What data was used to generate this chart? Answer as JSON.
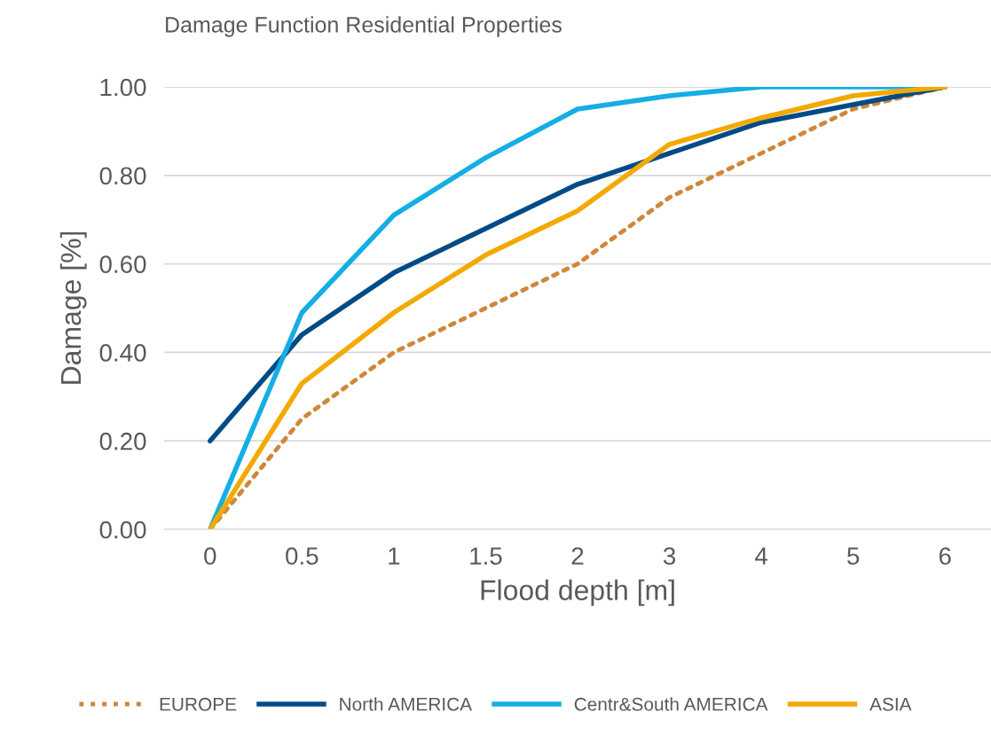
{
  "chart_data": {
    "type": "line",
    "title": "Damage Function Residential Properties",
    "xlabel": "Flood depth [m]",
    "ylabel": "Damage [%]",
    "categories": [
      "0",
      "0.5",
      "1",
      "1.5",
      "2",
      "3",
      "4",
      "5",
      "6"
    ],
    "series": [
      {
        "name": "EUROPE",
        "color": "#d0873a",
        "line_style": "dotted",
        "values": [
          0,
          0.25,
          0.4,
          0.5,
          0.6,
          0.75,
          0.85,
          0.95,
          1.0
        ]
      },
      {
        "name": "North AMERICA",
        "color": "#004b87",
        "line_style": "solid",
        "values": [
          0.2,
          0.44,
          0.58,
          0.68,
          0.78,
          0.85,
          0.92,
          0.96,
          1.0
        ]
      },
      {
        "name": "Centr&South AMERICA",
        "color": "#14aee4",
        "line_style": "solid",
        "values": [
          0,
          0.49,
          0.71,
          0.84,
          0.95,
          0.98,
          1.0,
          1.0,
          1.0
        ]
      },
      {
        "name": "ASIA",
        "color": "#f2a900",
        "line_style": "solid",
        "values": [
          0,
          0.33,
          0.49,
          0.62,
          0.72,
          0.87,
          0.93,
          0.98,
          1.0
        ]
      }
    ],
    "ylim": [
      0,
      1.0
    ],
    "yticks": [
      {
        "value": 0,
        "label": "0.00"
      },
      {
        "value": 0.2,
        "label": "0.20"
      },
      {
        "value": 0.4,
        "label": "0.40"
      },
      {
        "value": 0.6,
        "label": "0.60"
      },
      {
        "value": 0.8,
        "label": "0.80"
      },
      {
        "value": 1.0,
        "label": "1.00"
      }
    ],
    "grid": "y",
    "legend": "bottom",
    "marker": "none"
  }
}
